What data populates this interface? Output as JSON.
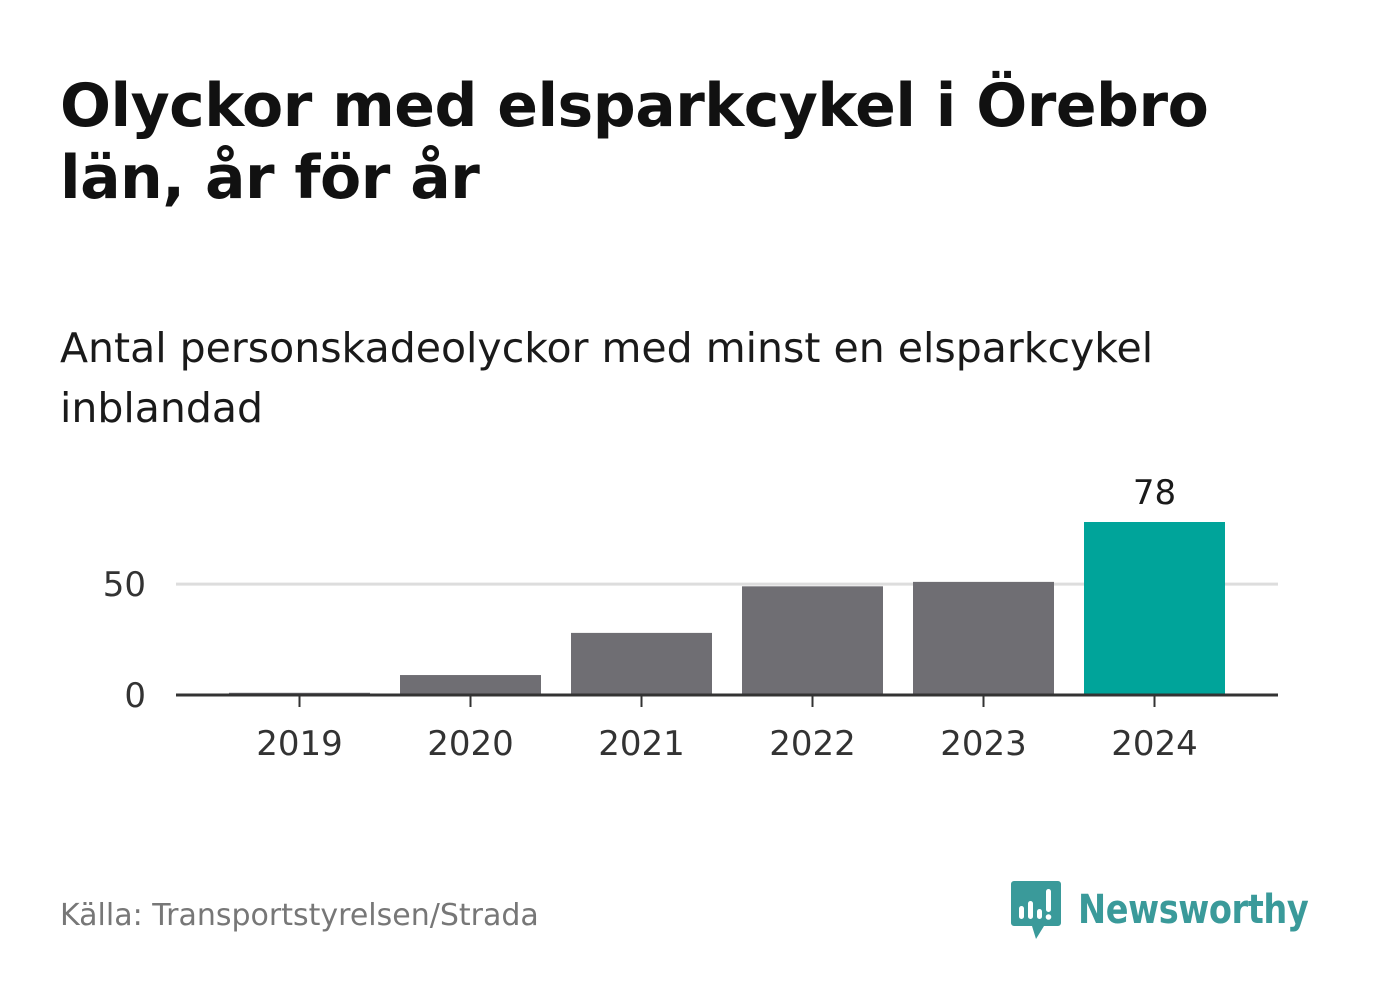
{
  "title": "Olyckor med elsparkcykel i Örebro län, år för år",
  "subtitle": "Antal personskadeolyckor med minst en elsparkcykel inblandad",
  "source": "Källa: Transportstyrelsen/Strada",
  "brand": {
    "name": "Newsworthy",
    "logo_icon": "speech-bubble-bar-chart-icon",
    "color": "#3a9a9a"
  },
  "colors": {
    "bar": "#6f6e73",
    "highlight": "#00a49a",
    "grid": "#dddddd",
    "axis": "#333333"
  },
  "chart_data": {
    "type": "bar",
    "categories": [
      "2019",
      "2020",
      "2021",
      "2022",
      "2023",
      "2024"
    ],
    "values": [
      1,
      9,
      28,
      49,
      51,
      78
    ],
    "highlight_index": 5,
    "data_labels": [
      {
        "index": 5,
        "text": "78"
      }
    ],
    "y_ticks": [
      0,
      50
    ],
    "ylim": [
      0,
      78
    ],
    "xlabel": "",
    "ylabel": "",
    "grid": true,
    "legend": "none"
  }
}
